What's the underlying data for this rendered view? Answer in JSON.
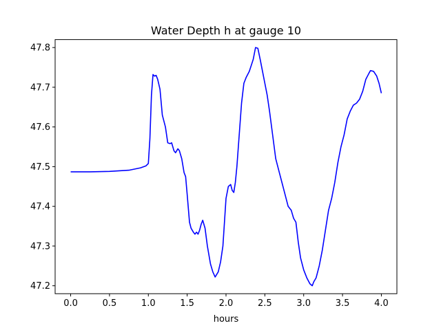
{
  "chart_data": {
    "type": "line",
    "title": "Water Depth h at gauge 10",
    "xlabel": "hours",
    "ylabel": "",
    "xlim": [
      -0.2,
      4.2
    ],
    "ylim": [
      47.18,
      47.82
    ],
    "xticks": [
      0.0,
      0.5,
      1.0,
      1.5,
      2.0,
      2.5,
      3.0,
      3.5,
      4.0
    ],
    "xtick_labels": [
      "0.0",
      "0.5",
      "1.0",
      "1.5",
      "2.0",
      "2.5",
      "3.0",
      "3.5",
      "4.0"
    ],
    "yticks": [
      47.2,
      47.3,
      47.4,
      47.5,
      47.6,
      47.7,
      47.8
    ],
    "ytick_labels": [
      "47.2",
      "47.3",
      "47.4",
      "47.5",
      "47.6",
      "47.7",
      "47.8"
    ],
    "grid": false,
    "color": "#0000ff",
    "series": [
      {
        "x": [
          0.0,
          0.25,
          0.5,
          0.75,
          0.9,
          0.97,
          1.0,
          1.02,
          1.04,
          1.06,
          1.08,
          1.1,
          1.12,
          1.15,
          1.18,
          1.22,
          1.25,
          1.28,
          1.3,
          1.33,
          1.35,
          1.38,
          1.4,
          1.43,
          1.46,
          1.48,
          1.5,
          1.53,
          1.55,
          1.58,
          1.6,
          1.62,
          1.64,
          1.66,
          1.68,
          1.7,
          1.73,
          1.76,
          1.8,
          1.83,
          1.86,
          1.9,
          1.93,
          1.96,
          2.0,
          2.03,
          2.06,
          2.08,
          2.1,
          2.12,
          2.14,
          2.17,
          2.2,
          2.23,
          2.26,
          2.3,
          2.35,
          2.38,
          2.41,
          2.44,
          2.47,
          2.5,
          2.53,
          2.56,
          2.6,
          2.64,
          2.68,
          2.72,
          2.76,
          2.8,
          2.84,
          2.87,
          2.9,
          2.93,
          2.96,
          3.0,
          3.04,
          3.08,
          3.11,
          3.13,
          3.16,
          3.2,
          3.24,
          3.28,
          3.32,
          3.36,
          3.4,
          3.44,
          3.48,
          3.52,
          3.56,
          3.6,
          3.64,
          3.68,
          3.72,
          3.76,
          3.8,
          3.84,
          3.86,
          3.9,
          3.94,
          3.97,
          4.0
        ],
        "y": [
          47.487,
          47.487,
          47.488,
          47.491,
          47.497,
          47.502,
          47.508,
          47.57,
          47.68,
          47.732,
          47.728,
          47.73,
          47.72,
          47.695,
          47.63,
          47.6,
          47.56,
          47.558,
          47.56,
          47.54,
          47.535,
          47.545,
          47.54,
          47.52,
          47.485,
          47.475,
          47.43,
          47.36,
          47.345,
          47.335,
          47.33,
          47.335,
          47.33,
          47.34,
          47.355,
          47.365,
          47.345,
          47.3,
          47.255,
          47.235,
          47.222,
          47.235,
          47.26,
          47.3,
          47.42,
          47.45,
          47.455,
          47.44,
          47.435,
          47.46,
          47.5,
          47.58,
          47.66,
          47.71,
          47.725,
          47.74,
          47.77,
          47.8,
          47.798,
          47.77,
          47.74,
          47.71,
          47.68,
          47.64,
          47.58,
          47.52,
          47.49,
          47.46,
          47.43,
          47.4,
          47.39,
          47.37,
          47.36,
          47.31,
          47.27,
          47.24,
          47.22,
          47.205,
          47.2,
          47.21,
          47.22,
          47.25,
          47.29,
          47.34,
          47.39,
          47.42,
          47.46,
          47.51,
          47.55,
          47.58,
          47.62,
          47.64,
          47.655,
          47.66,
          47.67,
          47.69,
          47.72,
          47.735,
          47.742,
          47.74,
          47.728,
          47.71,
          47.685
        ]
      }
    ]
  }
}
